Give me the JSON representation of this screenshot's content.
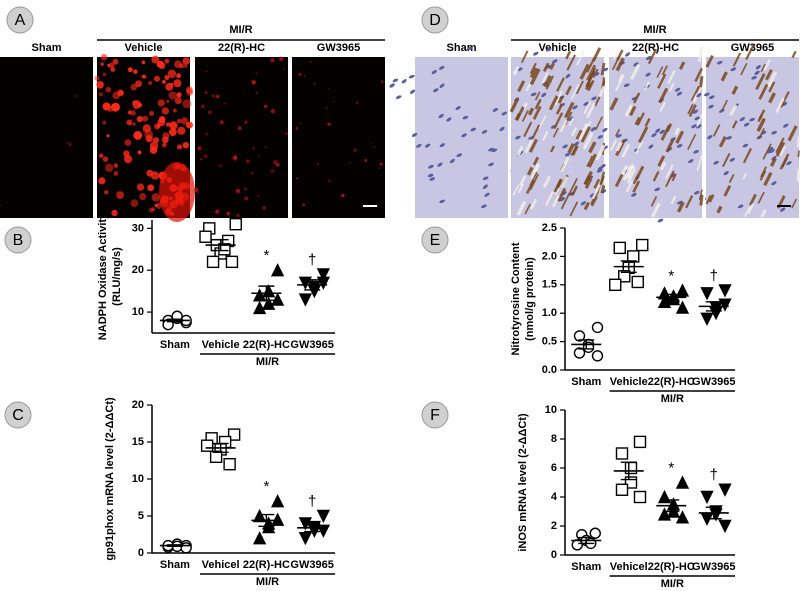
{
  "image_panels": [
    {
      "panel": "A",
      "group_label": "MI/R",
      "labels": [
        "Sham",
        "Vehicle",
        "22(R)-HC",
        "GW3965"
      ],
      "style": "fluorescence"
    },
    {
      "panel": "D",
      "group_label": "MI/R",
      "labels": [
        "Sham",
        "Vehicle",
        "22(R)-HC",
        "GW3965"
      ],
      "style": "histology"
    }
  ],
  "chart_data": [
    {
      "type": "dot",
      "panel": "B",
      "ylabel": [
        "NADPH Oxidase Activity",
        "(RLU/mg/s)"
      ],
      "categories": [
        "Sham",
        "Vehicle",
        "22(R)-HC",
        "GW3965"
      ],
      "group_label": "MI/R",
      "markers": [
        "circle-open",
        "square-open",
        "triangle-filled",
        "triangle-down-filled"
      ],
      "points": [
        [
          7.5,
          8,
          8.5,
          9,
          7,
          8
        ],
        [
          31,
          30,
          27,
          26,
          24,
          25,
          22,
          22,
          28
        ],
        [
          20,
          14,
          15,
          12,
          11,
          13
        ],
        [
          19,
          17,
          16,
          15,
          13,
          17
        ]
      ],
      "means": [
        8,
        26,
        14.5,
        16.5
      ],
      "sems": [
        0.3,
        1.3,
        1.7,
        1.2
      ],
      "annotations": [
        null,
        null,
        "*",
        "†"
      ],
      "ylim": [
        5,
        32
      ],
      "yticks": [
        10,
        20,
        30
      ]
    },
    {
      "type": "dot",
      "panel": "C",
      "ylabel": [
        "gp91phox mRNA level (2-ΔΔCt)"
      ],
      "categories": [
        "Sham",
        "Vehicel",
        "22(R)-HC",
        "GW3965"
      ],
      "group_label": "MI/R",
      "markers": [
        "circle-open",
        "square-open",
        "triangle-filled",
        "triangle-down-filled"
      ],
      "points": [
        [
          1,
          0.8,
          1.2,
          0.9,
          1,
          0.7
        ],
        [
          16,
          15.5,
          15,
          14,
          13,
          12,
          14.5
        ],
        [
          7,
          5,
          4,
          3.5,
          2,
          4.5
        ],
        [
          5,
          4,
          3.5,
          3,
          2,
          3
        ]
      ],
      "means": [
        1,
        14.2,
        4.4,
        3.4
      ],
      "sems": [
        0.1,
        0.6,
        0.8,
        0.5
      ],
      "annotations": [
        null,
        null,
        "*",
        "†"
      ],
      "ylim": [
        0,
        20
      ],
      "yticks": [
        0,
        5,
        10,
        15,
        20
      ]
    },
    {
      "type": "dot",
      "panel": "E",
      "ylabel": [
        "Nitrotyrosine Content",
        "(nmol/g protein)"
      ],
      "categories": [
        "Sham",
        "Vehicle",
        "22(R)-HC",
        "GW3965"
      ],
      "group_label": "MI/R",
      "markers": [
        "circle-open",
        "square-open",
        "triangle-filled",
        "triangle-down-filled"
      ],
      "points": [
        [
          0.75,
          0.6,
          0.45,
          0.4,
          0.3,
          0.25
        ],
        [
          2.2,
          2.15,
          2.0,
          1.8,
          1.65,
          1.55,
          1.5
        ],
        [
          1.4,
          1.35,
          1.3,
          1.25,
          1.2,
          1.1
        ],
        [
          1.4,
          1.35,
          1.1,
          1.0,
          0.9,
          1.15
        ]
      ],
      "means": [
        0.45,
        1.82,
        1.28,
        1.12
      ],
      "sems": [
        0.08,
        0.1,
        0.05,
        0.08
      ],
      "annotations": [
        null,
        null,
        "*",
        "†"
      ],
      "ylim": [
        0,
        2.5
      ],
      "yticks": [
        {
          "value": 0,
          "label": "0.0"
        },
        0.5,
        {
          "value": 1,
          "label": "1.0"
        },
        1.5,
        {
          "value": 2,
          "label": "2.0"
        },
        2.5
      ]
    },
    {
      "type": "dot",
      "panel": "F",
      "ylabel": [
        "iNOS mRNA level (2-ΔΔCt)"
      ],
      "categories": [
        "Sham",
        "Vehicel",
        "22(R)-HC",
        "GW3965"
      ],
      "group_label": "MI/R",
      "markers": [
        "circle-open",
        "square-open",
        "triangle-filled",
        "triangle-down-filled"
      ],
      "points": [
        [
          1.5,
          1.4,
          1,
          0.8,
          0.7
        ],
        [
          7.8,
          7,
          6,
          5,
          4.5,
          4
        ],
        [
          5,
          4,
          3.5,
          3,
          2.8,
          2.6
        ],
        [
          4.5,
          4,
          3,
          2.8,
          2.5,
          2
        ]
      ],
      "means": [
        1,
        5.8,
        3.4,
        2.9
      ],
      "sems": [
        0.2,
        0.6,
        0.4,
        0.4
      ],
      "annotations": [
        null,
        null,
        "*",
        "†"
      ],
      "ylim": [
        0,
        10
      ],
      "yticks": [
        0,
        2,
        4,
        6,
        8,
        10
      ]
    }
  ]
}
